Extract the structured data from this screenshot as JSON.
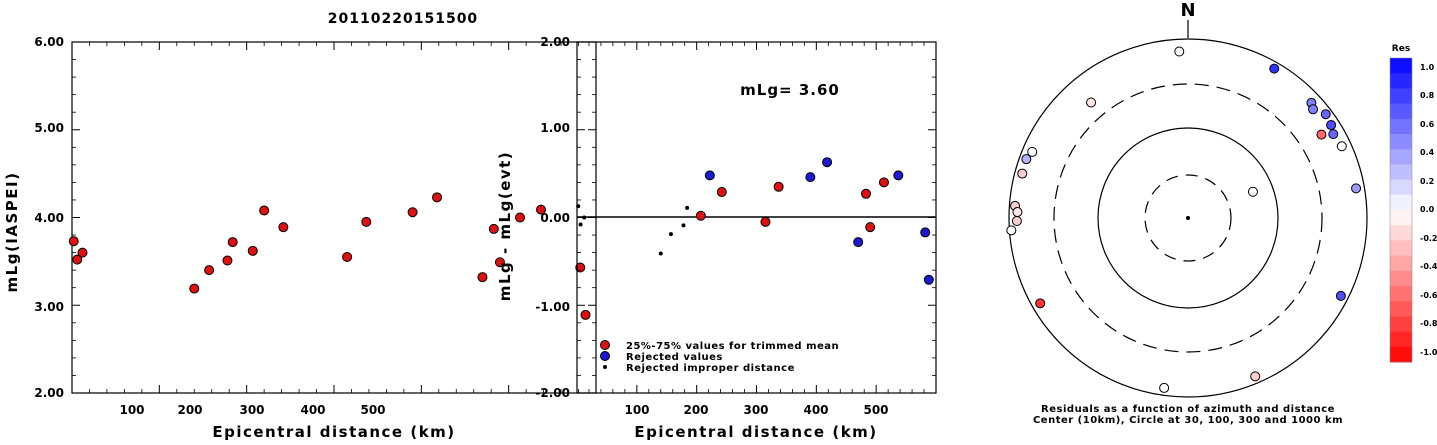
{
  "title": "20110220151500",
  "panel1": {
    "ylabel": "mLg(IASPEI)",
    "xlabel": "Epicentral distance (km)",
    "yticks": [
      "6.00",
      "5.00",
      "4.00",
      "3.00",
      "2.00"
    ],
    "xticks": [
      "100",
      "200",
      "300",
      "400",
      "500"
    ]
  },
  "panel2": {
    "ylabel": "mLg - mLg(evt)",
    "xlabel": "Epicentral distance (km)",
    "yticks": [
      "2.00",
      "1.00",
      "0.00",
      "-1.00",
      "-2.00"
    ],
    "xticks": [
      "100",
      "200",
      "300",
      "400",
      "500"
    ],
    "annotation": "mLg= 3.60",
    "legend": [
      {
        "label": "25%-75% values for trimmed mean",
        "color": "#dd1111",
        "kind": "circle"
      },
      {
        "label": "Rejected values",
        "color": "#1a1ad0",
        "kind": "circle"
      },
      {
        "label": "Rejected improper distance",
        "color": "#000000",
        "kind": "dot"
      }
    ]
  },
  "panel3": {
    "north": "N",
    "caption1": "Residuals as a function of azimuth and distance",
    "caption2": "Center (10km), Circle at 30, 100, 300 and 1000 km",
    "colorbar_title": "Res",
    "colorbar_labels": [
      "1.0",
      "0.8",
      "0.6",
      "0.4",
      "0.2",
      "0.0",
      "-0.2",
      "-0.4",
      "-0.6",
      "-0.8",
      "-1.0"
    ]
  },
  "chart_data": [
    {
      "type": "scatter",
      "title": "20110220151500",
      "xlabel": "Epicentral distance (km)",
      "ylabel": "mLg(IASPEI)",
      "xlim": [
        0,
        600
      ],
      "ylim": [
        2.0,
        6.0
      ],
      "series": [
        {
          "color": "#dd1111",
          "points": [
            [
              2,
              3.73
            ],
            [
              6,
              3.52
            ],
            [
              12,
              3.6
            ],
            [
              140,
              3.19
            ],
            [
              157,
              3.4
            ],
            [
              178,
              3.51
            ],
            [
              184,
              3.72
            ],
            [
              207,
              3.62
            ],
            [
              220,
              4.08
            ],
            [
              242,
              3.89
            ],
            [
              315,
              3.55
            ],
            [
              337,
              3.95
            ],
            [
              390,
              4.06
            ],
            [
              418,
              4.23
            ],
            [
              470,
              3.32
            ],
            [
              483,
              3.87
            ],
            [
              490,
              3.49
            ],
            [
              513,
              4.0
            ],
            [
              537,
              4.09
            ],
            [
              582,
              3.43
            ],
            [
              588,
              2.89
            ]
          ]
        }
      ]
    },
    {
      "type": "scatter",
      "xlabel": "Epicentral distance (km)",
      "ylabel": "mLg - mLg(evt)",
      "xlim": [
        0,
        600
      ],
      "ylim": [
        -2.0,
        2.0
      ],
      "annotation": "mLg= 3.60",
      "series": [
        {
          "name": "25%-75% values for trimmed mean",
          "color": "#dd1111",
          "points": [
            [
              207,
              0.02
            ],
            [
              242,
              0.29
            ],
            [
              315,
              -0.05
            ],
            [
              337,
              0.35
            ],
            [
              483,
              0.27
            ],
            [
              490,
              -0.11
            ],
            [
              513,
              0.4
            ]
          ]
        },
        {
          "name": "Rejected values",
          "color": "#1a1ad0",
          "points": [
            [
              222,
              0.48
            ],
            [
              390,
              0.46
            ],
            [
              418,
              0.63
            ],
            [
              470,
              -0.28
            ],
            [
              537,
              0.48
            ],
            [
              582,
              -0.17
            ],
            [
              588,
              -0.71
            ]
          ]
        },
        {
          "name": "Rejected improper distance",
          "color": "#000000",
          "points": [
            [
              2,
              0.13
            ],
            [
              6,
              -0.08
            ],
            [
              12,
              0.0
            ],
            [
              140,
              -0.41
            ],
            [
              157,
              -0.19
            ],
            [
              178,
              -0.09
            ],
            [
              184,
              0.11
            ]
          ]
        }
      ]
    },
    {
      "type": "scatter",
      "subtype": "polar-residuals",
      "rings_km": [
        30,
        100,
        300,
        1000
      ],
      "center_km": 10,
      "colorbar_range": [
        -1.0,
        1.0
      ],
      "points": [
        {
          "az": 65,
          "dist": 780,
          "res": 0.0
        },
        {
          "az": -3,
          "dist": 720,
          "res": 0.0
        },
        {
          "az": 30,
          "dist": 840,
          "res": 0.8
        },
        {
          "az": 47,
          "dist": 760,
          "res": 0.5
        },
        {
          "az": 49,
          "dist": 700,
          "res": 0.5
        },
        {
          "az": 53,
          "dist": 840,
          "res": 0.6
        },
        {
          "az": 57,
          "dist": 800,
          "res": 0.7
        },
        {
          "az": 60,
          "dist": 740,
          "res": 0.6
        },
        {
          "az": 58,
          "dist": 560,
          "res": -0.6
        },
        {
          "az": 80,
          "dist": 800,
          "res": 0.4
        },
        {
          "az": -40,
          "dist": 470,
          "res": -0.1
        },
        {
          "az": -70,
          "dist": 830,
          "res": 0.3
        },
        {
          "az": -75,
          "dist": 820,
          "res": -0.2
        },
        {
          "az": -67,
          "dist": 770,
          "res": 0.0
        },
        {
          "az": -86,
          "dist": 860,
          "res": -0.2
        },
        {
          "az": -88,
          "dist": 800,
          "res": -0.1
        },
        {
          "az": -91,
          "dist": 810,
          "res": -0.2
        },
        {
          "az": -94,
          "dist": 950,
          "res": 0.0
        },
        {
          "az": -120,
          "dist": 800,
          "res": -0.8
        },
        {
          "az": -172,
          "dist": 820,
          "res": 0.0
        },
        {
          "az": 157,
          "dist": 830,
          "res": -0.2
        },
        {
          "az": 117,
          "dist": 820,
          "res": 0.7
        },
        {
          "az": 68,
          "dist": 60,
          "res": 0.0
        }
      ]
    }
  ]
}
